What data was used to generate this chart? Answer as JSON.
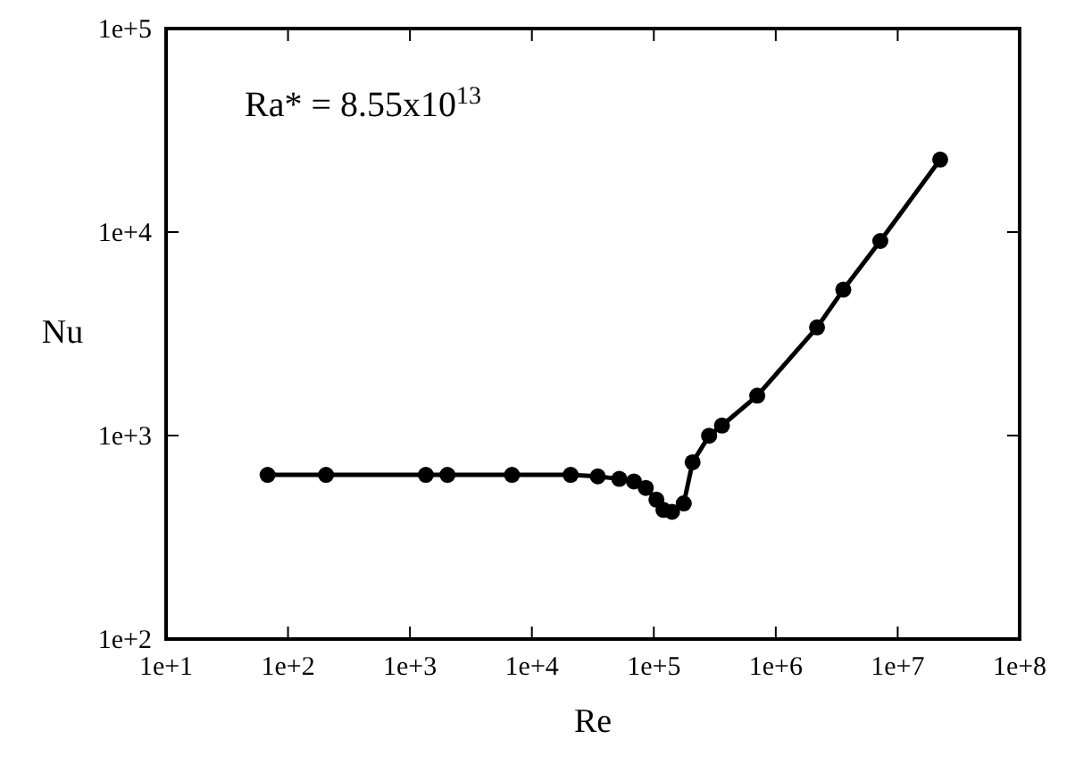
{
  "chart_data": {
    "type": "line",
    "xlabel": "Re",
    "ylabel": "Nu",
    "log": "xy",
    "marker": "circle",
    "line_style": "solid",
    "xlim": [
      10,
      100000000
    ],
    "ylim": [
      100,
      100000
    ],
    "xticks": [
      {
        "value": 10,
        "label": "1e+1"
      },
      {
        "value": 100,
        "label": "1e+2"
      },
      {
        "value": 1000,
        "label": "1e+3"
      },
      {
        "value": 10000,
        "label": "1e+4"
      },
      {
        "value": 100000,
        "label": "1e+5"
      },
      {
        "value": 1000000,
        "label": "1e+6"
      },
      {
        "value": 10000000,
        "label": "1e+7"
      },
      {
        "value": 100000000,
        "label": "1e+8"
      }
    ],
    "yticks": [
      {
        "value": 100,
        "label": "1e+2"
      },
      {
        "value": 1000,
        "label": "1e+3"
      },
      {
        "value": 10000,
        "label": "1e+4"
      },
      {
        "value": 100000,
        "label": "1e+5"
      }
    ],
    "annotations": [
      "Ra* = 8.55x10$^{13}$"
    ],
    "series": [
      {
        "color": "#000000",
        "x": [
          68,
          205,
          1350,
          2030,
          6870,
          20800,
          34700,
          52100,
          68700,
          85900,
          105000,
          120000,
          141000,
          176000,
          208000,
          284000,
          362000,
          705000,
          2180000,
          3580000,
          7200000,
          22300000
        ],
        "values": [
          641,
          641,
          641,
          641,
          641,
          641,
          630,
          612,
          595,
          553,
          484,
          431,
          422,
          464,
          739,
          998,
          1120,
          1570,
          3400,
          5210,
          9040,
          22700
        ]
      }
    ]
  }
}
